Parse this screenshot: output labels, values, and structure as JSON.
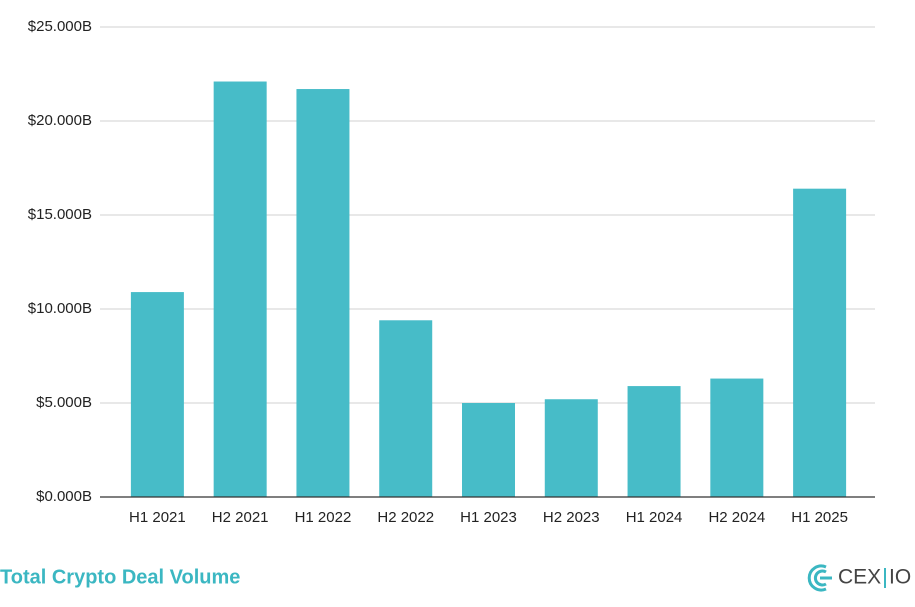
{
  "chart_data": {
    "type": "bar",
    "title": "Total Crypto Deal Volume",
    "categories": [
      "H1 2021",
      "H2 2021",
      "H1 2022",
      "H2 2022",
      "H1 2023",
      "H2 2023",
      "H1 2024",
      "H2 2024",
      "H1 2025"
    ],
    "values": [
      10.9,
      22.1,
      21.7,
      9.4,
      5.0,
      5.2,
      5.9,
      6.3,
      16.4
    ],
    "color": "#47bcc8",
    "ylim": [
      0,
      25
    ],
    "yticks": [
      {
        "value": 0,
        "label": "$0.000B"
      },
      {
        "value": 5,
        "label": "$5.000B"
      },
      {
        "value": 10,
        "label": "$10.000B"
      },
      {
        "value": 15,
        "label": "$15.000B"
      },
      {
        "value": 20,
        "label": "$20.000B"
      },
      {
        "value": 25,
        "label": "$25.000B"
      }
    ],
    "grid": true
  },
  "logo": {
    "brand": "CEX",
    "suffix": "IO"
  }
}
